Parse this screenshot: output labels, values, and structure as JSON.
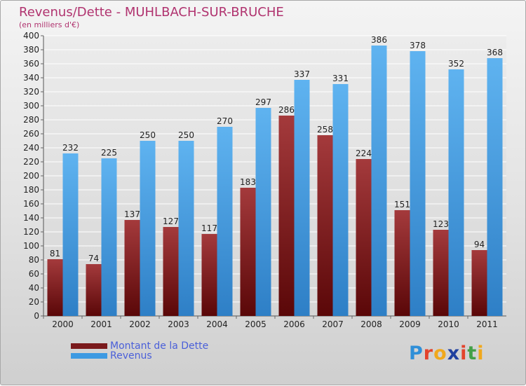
{
  "header": {
    "title": "Revenus/Dette - MUHLBACH-SUR-BRUCHE",
    "subtitle": "(en milliers d'€)"
  },
  "chart_data": {
    "type": "bar",
    "categories": [
      "2000",
      "2001",
      "2002",
      "2003",
      "2004",
      "2005",
      "2006",
      "2007",
      "2008",
      "2009",
      "2010",
      "2011"
    ],
    "series": [
      {
        "name": "Montant de la Dette",
        "values": [
          81,
          74,
          137,
          127,
          117,
          183,
          286,
          258,
          224,
          151,
          123,
          94
        ],
        "color": "#7a1a1c"
      },
      {
        "name": "Revenus",
        "values": [
          232,
          225,
          250,
          250,
          270,
          297,
          337,
          331,
          386,
          378,
          352,
          368
        ],
        "color": "#3d9ae2"
      }
    ],
    "ylim": [
      0,
      400
    ],
    "yticks": [
      0,
      20,
      40,
      60,
      80,
      100,
      120,
      140,
      160,
      180,
      200,
      220,
      240,
      260,
      280,
      300,
      320,
      340,
      360,
      380,
      400
    ],
    "grid": true,
    "legend_position": "bottom-left"
  },
  "logo": {
    "letters": [
      "P",
      "r",
      "o",
      "x",
      "i",
      "t",
      "i"
    ],
    "colors": [
      "#2f8fd8",
      "#e3432b",
      "#f0a81c",
      "#1f3f9f",
      "#e3432b",
      "#43a047",
      "#f0a81c"
    ]
  }
}
